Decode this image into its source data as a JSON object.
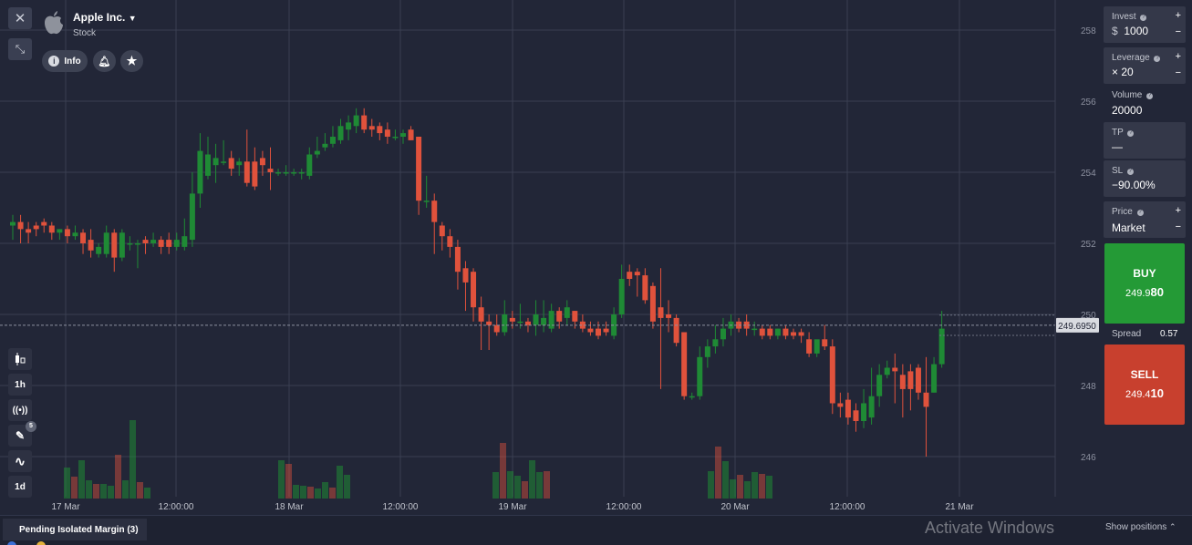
{
  "asset": {
    "name": "Apple Inc.",
    "type": "Stock"
  },
  "header_buttons": {
    "info": "Info"
  },
  "left_tools": {
    "timeframe": "1h",
    "drawings_badge": "5",
    "period": "1d"
  },
  "chart_data": {
    "type": "candlestick",
    "title": "Apple Inc.",
    "x_tick_labels": [
      "17 Mar",
      "12:00:00",
      "18 Mar",
      "12:00:00",
      "19 Mar",
      "12:00:00",
      "20 Mar",
      "12:00:00",
      "21 Mar"
    ],
    "y_tick_labels": [
      "258",
      "256",
      "254",
      "252",
      "250",
      "248",
      "246"
    ],
    "ylim": [
      245.8,
      258.5
    ],
    "grid": true,
    "current_price_label": "249.6950",
    "colors": {
      "up": "#1f8a35",
      "down": "#e0523c",
      "background": "#222637",
      "grid": "#3a3f52"
    },
    "candles": [
      {
        "o": 252.5,
        "h": 252.8,
        "c": 252.6,
        "l": 252.1
      },
      {
        "o": 252.6,
        "h": 252.8,
        "c": 252.4,
        "l": 252.0
      },
      {
        "o": 252.4,
        "h": 252.6,
        "c": 252.3,
        "l": 252.0
      },
      {
        "o": 252.5,
        "h": 252.6,
        "c": 252.4,
        "l": 252.2
      },
      {
        "o": 252.6,
        "h": 252.7,
        "c": 252.5,
        "l": 252.3
      },
      {
        "o": 252.5,
        "h": 252.6,
        "c": 252.3,
        "l": 252.1
      },
      {
        "o": 252.3,
        "h": 252.4,
        "c": 252.4,
        "l": 252.1
      },
      {
        "o": 252.4,
        "h": 252.5,
        "c": 252.2,
        "l": 252.0
      },
      {
        "o": 252.2,
        "h": 252.5,
        "c": 252.3,
        "l": 252.1
      },
      {
        "o": 252.3,
        "h": 252.4,
        "c": 252.0,
        "l": 251.7
      },
      {
        "o": 252.1,
        "h": 252.4,
        "c": 251.8,
        "l": 251.6
      },
      {
        "o": 251.7,
        "h": 252.0,
        "c": 251.9,
        "l": 251.6
      },
      {
        "o": 251.7,
        "h": 252.5,
        "c": 252.3,
        "l": 251.6
      },
      {
        "o": 252.3,
        "h": 252.4,
        "c": 251.6,
        "l": 251.2
      },
      {
        "o": 251.6,
        "h": 252.4,
        "c": 252.3,
        "l": 251.5
      },
      {
        "o": 252.0,
        "h": 252.2,
        "c": 252.0,
        "l": 251.8
      },
      {
        "o": 252.0,
        "h": 252.1,
        "c": 252.0,
        "l": 251.3
      },
      {
        "o": 252.1,
        "h": 252.2,
        "c": 252.0,
        "l": 251.7
      },
      {
        "o": 252.0,
        "h": 252.3,
        "c": 252.1,
        "l": 251.9
      },
      {
        "o": 252.1,
        "h": 252.2,
        "c": 251.9,
        "l": 251.7
      },
      {
        "o": 252.1,
        "h": 252.3,
        "c": 251.9,
        "l": 251.7
      },
      {
        "o": 251.9,
        "h": 252.3,
        "c": 252.1,
        "l": 251.8
      },
      {
        "o": 251.9,
        "h": 252.7,
        "c": 252.2,
        "l": 251.8
      },
      {
        "o": 252.1,
        "h": 254.0,
        "c": 253.4,
        "l": 251.9
      },
      {
        "o": 253.4,
        "h": 255.1,
        "c": 254.6,
        "l": 253.0
      },
      {
        "o": 253.9,
        "h": 255.0,
        "c": 254.5,
        "l": 253.8
      },
      {
        "o": 254.2,
        "h": 254.8,
        "c": 254.4,
        "l": 253.7
      },
      {
        "o": 254.3,
        "h": 254.9,
        "c": 254.3,
        "l": 254.2
      },
      {
        "o": 254.4,
        "h": 254.6,
        "c": 254.1,
        "l": 253.9
      },
      {
        "o": 254.2,
        "h": 254.4,
        "c": 254.3,
        "l": 253.9
      },
      {
        "o": 254.3,
        "h": 255.2,
        "c": 253.7,
        "l": 253.6
      },
      {
        "o": 254.3,
        "h": 254.7,
        "c": 253.6,
        "l": 253.5
      },
      {
        "o": 254.4,
        "h": 254.6,
        "c": 254.2,
        "l": 253.9
      },
      {
        "o": 254.1,
        "h": 254.7,
        "c": 254.0,
        "l": 253.5
      },
      {
        "o": 254.0,
        "h": 254.1,
        "c": 254.0,
        "l": 253.9
      },
      {
        "o": 254.0,
        "h": 254.2,
        "c": 254.0,
        "l": 253.9
      },
      {
        "o": 254.0,
        "h": 254.1,
        "c": 254.0,
        "l": 253.9
      },
      {
        "o": 254.0,
        "h": 254.1,
        "c": 254.0,
        "l": 253.8
      },
      {
        "o": 253.9,
        "h": 254.7,
        "c": 254.5,
        "l": 253.8
      },
      {
        "o": 254.5,
        "h": 255.0,
        "c": 254.6,
        "l": 254.4
      },
      {
        "o": 254.7,
        "h": 255.1,
        "c": 254.8,
        "l": 254.6
      },
      {
        "o": 254.8,
        "h": 255.3,
        "c": 255.0,
        "l": 254.7
      },
      {
        "o": 254.9,
        "h": 255.5,
        "c": 255.3,
        "l": 254.8
      },
      {
        "o": 255.2,
        "h": 255.6,
        "c": 255.4,
        "l": 254.9
      },
      {
        "o": 255.3,
        "h": 255.8,
        "c": 255.6,
        "l": 255.1
      },
      {
        "o": 255.6,
        "h": 255.8,
        "c": 255.2,
        "l": 255.1
      },
      {
        "o": 255.3,
        "h": 255.5,
        "c": 255.2,
        "l": 255.0
      },
      {
        "o": 255.3,
        "h": 255.4,
        "c": 255.1,
        "l": 254.9
      },
      {
        "o": 255.2,
        "h": 255.4,
        "c": 255.0,
        "l": 254.8
      },
      {
        "o": 255.0,
        "h": 255.2,
        "c": 255.0,
        "l": 254.9
      },
      {
        "o": 255.0,
        "h": 255.2,
        "c": 255.1,
        "l": 254.8
      },
      {
        "o": 255.2,
        "h": 255.3,
        "c": 254.9,
        "l": 254.9
      },
      {
        "o": 255.0,
        "h": 255.0,
        "c": 253.2,
        "l": 252.8
      },
      {
        "o": 253.2,
        "h": 253.9,
        "c": 253.2,
        "l": 253.0
      },
      {
        "o": 253.2,
        "h": 253.4,
        "c": 252.6,
        "l": 251.7
      },
      {
        "o": 252.5,
        "h": 252.6,
        "c": 252.2,
        "l": 251.8
      },
      {
        "o": 252.2,
        "h": 252.4,
        "c": 251.9,
        "l": 251.6
      },
      {
        "o": 251.9,
        "h": 252.1,
        "c": 251.2,
        "l": 250.7
      },
      {
        "o": 251.3,
        "h": 251.5,
        "c": 250.9,
        "l": 250.1
      },
      {
        "o": 251.2,
        "h": 251.3,
        "c": 250.2,
        "l": 249.8
      },
      {
        "o": 250.2,
        "h": 250.5,
        "c": 249.8,
        "l": 249.0
      },
      {
        "o": 249.8,
        "h": 250.0,
        "c": 249.7,
        "l": 249.0
      },
      {
        "o": 249.7,
        "h": 250.0,
        "c": 249.5,
        "l": 249.4
      },
      {
        "o": 249.5,
        "h": 250.4,
        "c": 250.0,
        "l": 249.4
      },
      {
        "o": 249.9,
        "h": 250.1,
        "c": 249.8,
        "l": 249.6
      },
      {
        "o": 249.8,
        "h": 250.3,
        "c": 249.8,
        "l": 249.6
      },
      {
        "o": 249.8,
        "h": 249.9,
        "c": 249.7,
        "l": 249.5
      },
      {
        "o": 249.7,
        "h": 250.4,
        "c": 250.0,
        "l": 249.4
      },
      {
        "o": 249.7,
        "h": 250.4,
        "c": 249.9,
        "l": 249.5
      },
      {
        "o": 249.6,
        "h": 250.3,
        "c": 250.1,
        "l": 249.5
      },
      {
        "o": 250.1,
        "h": 250.2,
        "c": 249.8,
        "l": 249.6
      },
      {
        "o": 249.9,
        "h": 250.4,
        "c": 250.2,
        "l": 249.7
      },
      {
        "o": 250.1,
        "h": 250.1,
        "c": 249.8,
        "l": 249.6
      },
      {
        "o": 249.8,
        "h": 250.0,
        "c": 249.6,
        "l": 249.5
      },
      {
        "o": 249.6,
        "h": 249.8,
        "c": 249.5,
        "l": 249.4
      },
      {
        "o": 249.6,
        "h": 249.8,
        "c": 249.4,
        "l": 249.3
      },
      {
        "o": 249.6,
        "h": 249.8,
        "c": 249.5,
        "l": 249.4
      },
      {
        "o": 249.4,
        "h": 250.2,
        "c": 250.0,
        "l": 249.3
      },
      {
        "o": 250.0,
        "h": 251.4,
        "c": 251.0,
        "l": 249.9
      },
      {
        "o": 251.2,
        "h": 251.4,
        "c": 251.0,
        "l": 250.8
      },
      {
        "o": 251.2,
        "h": 251.3,
        "c": 251.1,
        "l": 250.5
      },
      {
        "o": 251.1,
        "h": 251.3,
        "c": 250.4,
        "l": 250.3
      },
      {
        "o": 250.8,
        "h": 250.9,
        "c": 249.8,
        "l": 249.6
      },
      {
        "o": 250.2,
        "h": 251.3,
        "c": 249.9,
        "l": 247.9
      },
      {
        "o": 250.0,
        "h": 250.4,
        "c": 249.9,
        "l": 249.5
      },
      {
        "o": 249.9,
        "h": 250.0,
        "c": 249.2,
        "l": 249.1
      },
      {
        "o": 249.5,
        "h": 249.5,
        "c": 247.7,
        "l": 247.6
      },
      {
        "o": 247.7,
        "h": 247.8,
        "c": 247.7,
        "l": 247.6
      },
      {
        "o": 247.7,
        "h": 249.1,
        "c": 248.8,
        "l": 247.6
      },
      {
        "o": 248.8,
        "h": 249.3,
        "c": 249.1,
        "l": 248.5
      },
      {
        "o": 249.1,
        "h": 249.7,
        "c": 249.3,
        "l": 248.9
      },
      {
        "o": 249.3,
        "h": 249.9,
        "c": 249.6,
        "l": 249.1
      },
      {
        "o": 249.6,
        "h": 250.0,
        "c": 249.8,
        "l": 249.4
      },
      {
        "o": 249.8,
        "h": 249.9,
        "c": 249.6,
        "l": 249.5
      },
      {
        "o": 249.8,
        "h": 250.0,
        "c": 249.6,
        "l": 249.4
      },
      {
        "o": 249.6,
        "h": 249.8,
        "c": 249.6,
        "l": 249.4
      },
      {
        "o": 249.6,
        "h": 249.7,
        "c": 249.4,
        "l": 249.3
      },
      {
        "o": 249.6,
        "h": 249.7,
        "c": 249.4,
        "l": 249.3
      },
      {
        "o": 249.4,
        "h": 249.6,
        "c": 249.6,
        "l": 249.3
      },
      {
        "o": 249.6,
        "h": 249.7,
        "c": 249.4,
        "l": 249.3
      },
      {
        "o": 249.5,
        "h": 249.6,
        "c": 249.4,
        "l": 249.3
      },
      {
        "o": 249.5,
        "h": 249.6,
        "c": 249.4,
        "l": 249.2
      },
      {
        "o": 249.3,
        "h": 249.5,
        "c": 248.9,
        "l": 248.8
      },
      {
        "o": 248.9,
        "h": 249.2,
        "c": 249.3,
        "l": 248.8
      },
      {
        "o": 249.3,
        "h": 249.7,
        "c": 249.1,
        "l": 249.0
      },
      {
        "o": 249.1,
        "h": 249.3,
        "c": 247.5,
        "l": 247.2
      },
      {
        "o": 247.5,
        "h": 247.8,
        "c": 247.4,
        "l": 247.1
      },
      {
        "o": 247.6,
        "h": 247.8,
        "c": 247.1,
        "l": 246.9
      },
      {
        "o": 247.3,
        "h": 247.5,
        "c": 247.0,
        "l": 246.7
      },
      {
        "o": 247.0,
        "h": 247.9,
        "c": 247.5,
        "l": 246.8
      },
      {
        "o": 247.1,
        "h": 248.5,
        "c": 247.7,
        "l": 246.9
      },
      {
        "o": 247.7,
        "h": 248.6,
        "c": 248.3,
        "l": 247.4
      },
      {
        "o": 248.3,
        "h": 248.7,
        "c": 248.5,
        "l": 248.2
      },
      {
        "o": 248.5,
        "h": 248.9,
        "c": 248.4,
        "l": 247.5
      },
      {
        "o": 248.3,
        "h": 248.6,
        "c": 247.9,
        "l": 247.1
      },
      {
        "o": 248.4,
        "h": 248.6,
        "c": 247.9,
        "l": 247.3
      },
      {
        "o": 248.5,
        "h": 248.6,
        "c": 247.8,
        "l": 247.6
      },
      {
        "o": 247.8,
        "h": 248.8,
        "c": 247.4,
        "l": 246.0
      },
      {
        "o": 247.8,
        "h": 248.8,
        "c": 248.6,
        "l": 247.8
      },
      {
        "o": 248.6,
        "h": 250.1,
        "c": 249.6,
        "l": 248.5
      }
    ],
    "volume": [
      3,
      2,
      4,
      2,
      1,
      1,
      1,
      4,
      2,
      1,
      2,
      1,
      1,
      1,
      1,
      1,
      1,
      1,
      1,
      1,
      1,
      1,
      1,
      1,
      1,
      1,
      1,
      1,
      1,
      1,
      1,
      1,
      1,
      1,
      1,
      1,
      1,
      1,
      1,
      1,
      1,
      1,
      1,
      1,
      1,
      1,
      1,
      1,
      1,
      1,
      1,
      1,
      1,
      1,
      1,
      1,
      1,
      1,
      1,
      1,
      1,
      1,
      1,
      1,
      1,
      1,
      1,
      1,
      1,
      1,
      1,
      1,
      1,
      1,
      1,
      1,
      1,
      1,
      1,
      1,
      1,
      1,
      1,
      1,
      1,
      1,
      1,
      1,
      1,
      1,
      1,
      1,
      1,
      1,
      1,
      1,
      1,
      1,
      1,
      1,
      1,
      1,
      1,
      1,
      1,
      1,
      1,
      1,
      1,
      1,
      1,
      1,
      1,
      1,
      1,
      1,
      1,
      1,
      1,
      1
    ]
  },
  "volume_bars": {
    "day1": [
      3.4,
      2.4,
      4.2,
      2.0,
      1.6,
      1.6,
      1.4,
      4.8,
      2.0,
      8.6,
      1.8,
      1.2
    ],
    "day2": [
      4.2,
      3.8,
      1.5,
      1.4,
      1.3,
      1.1,
      1.8,
      1.2,
      3.6,
      2.6,
      0.0
    ],
    "day3": [
      2.9,
      6.1,
      3.0,
      2.5,
      1.9,
      4.2,
      2.9,
      3.0,
      0.0
    ],
    "day4": [
      3.0,
      5.7,
      4.1,
      2.1,
      2.6,
      1.9,
      2.9,
      2.7,
      2.5
    ]
  },
  "trade_panel": {
    "invest_label": "Invest",
    "invest_currency": "$",
    "invest_value": "1000",
    "leverage_label": "Leverage",
    "leverage_value": "× 20",
    "volume_label": "Volume",
    "volume_value": "20000",
    "tp_label": "TP",
    "tp_value": "—",
    "sl_label": "SL",
    "sl_value": "−90.00%",
    "price_label": "Price",
    "price_value": "Market",
    "buy_label": "BUY",
    "buy_price_main": "249.9",
    "buy_price_big": "80",
    "spread_label": "Spread",
    "spread_value": "0.57",
    "sell_label": "SELL",
    "sell_price_main": "249.4",
    "sell_price_big": "10"
  },
  "bottom": {
    "tab_label": "Pending Isolated Margin (3)",
    "show_positions": "Show positions",
    "watermark": "Activate Windows"
  }
}
